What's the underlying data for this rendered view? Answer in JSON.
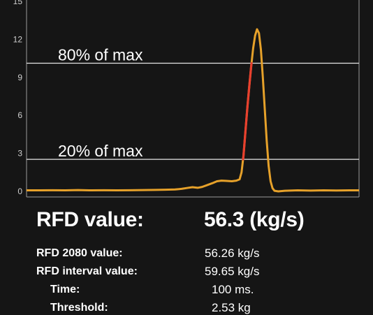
{
  "chart_data": {
    "type": "line",
    "ylim": [
      0,
      15
    ],
    "yticks": [
      0,
      3,
      6,
      9,
      12,
      15
    ],
    "grid": false,
    "series": [
      {
        "color": "#e6a12a",
        "highlight_color": "#e8402e",
        "highlight_range": [
          2.53,
          10.12
        ],
        "points": [
          [
            0,
            0.08
          ],
          [
            20,
            0.08
          ],
          [
            40,
            0.09
          ],
          [
            60,
            0.08
          ],
          [
            80,
            0.1
          ],
          [
            100,
            0.08
          ],
          [
            120,
            0.09
          ],
          [
            140,
            0.08
          ],
          [
            160,
            0.09
          ],
          [
            180,
            0.1
          ],
          [
            200,
            0.12
          ],
          [
            215,
            0.13
          ],
          [
            230,
            0.15
          ],
          [
            240,
            0.2
          ],
          [
            250,
            0.28
          ],
          [
            257,
            0.33
          ],
          [
            265,
            0.28
          ],
          [
            272,
            0.35
          ],
          [
            280,
            0.5
          ],
          [
            288,
            0.65
          ],
          [
            295,
            0.8
          ],
          [
            302,
            0.85
          ],
          [
            310,
            0.83
          ],
          [
            318,
            0.8
          ],
          [
            325,
            0.85
          ],
          [
            330,
            0.95
          ],
          [
            333,
            1.5
          ],
          [
            336,
            2.8
          ],
          [
            339,
            4.7
          ],
          [
            342,
            6.6
          ],
          [
            345,
            8.3
          ],
          [
            348,
            9.9
          ],
          [
            351,
            11.3
          ],
          [
            354,
            12.3
          ],
          [
            357,
            12.8
          ],
          [
            360,
            12.5
          ],
          [
            363,
            11.2
          ],
          [
            366,
            9.0
          ],
          [
            369,
            6.5
          ],
          [
            372,
            4.0
          ],
          [
            375,
            2.0
          ],
          [
            378,
            0.8
          ],
          [
            381,
            0.25
          ],
          [
            384,
            0.05
          ],
          [
            390,
            0.0
          ],
          [
            400,
            0.05
          ],
          [
            420,
            0.08
          ],
          [
            440,
            0.06
          ],
          [
            460,
            0.08
          ],
          [
            480,
            0.07
          ],
          [
            500,
            0.08
          ],
          [
            515,
            0.08
          ]
        ]
      }
    ],
    "reference_lines": [
      {
        "label": "80% of max",
        "value": 10.12
      },
      {
        "label": "20% of max",
        "value": 2.53
      }
    ]
  },
  "summary": {
    "rfd_label": "RFD value:",
    "rfd_value": "56.3 (kg/s)",
    "rows": [
      {
        "label": "RFD 2080 value:",
        "value": "56.26 kg/s"
      },
      {
        "label": "RFD interval value:",
        "value": "59.65 kg/s"
      },
      {
        "label": "Time:",
        "value": "100 ms."
      },
      {
        "label": "Threshold:",
        "value": "2.53 kg"
      }
    ]
  }
}
